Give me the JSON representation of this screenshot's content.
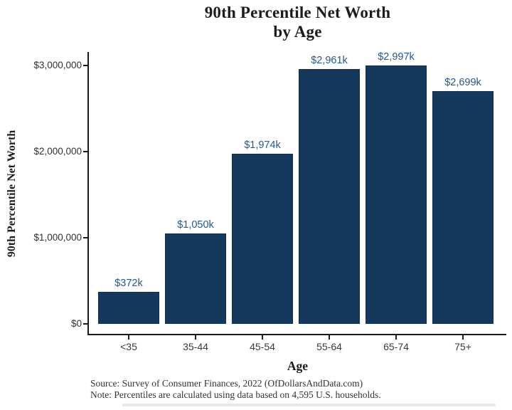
{
  "title": {
    "line1": "90th Percentile Net Worth",
    "line2": "by Age"
  },
  "chart_data": {
    "type": "bar",
    "title": "90th Percentile Net Worth by Age",
    "xlabel": "Age",
    "ylabel": "90th Percentile Net Worth",
    "categories": [
      "<35",
      "35-44",
      "45-54",
      "55-64",
      "65-74",
      "75+"
    ],
    "values": [
      372000,
      1050000,
      1974000,
      2961000,
      2997000,
      2699000
    ],
    "bar_labels": [
      "$372k",
      "$1,050k",
      "$1,974k",
      "$2,961k",
      "$2,997k",
      "$2,699k"
    ],
    "ylim": [
      0,
      3000000
    ],
    "y_ticks": [
      {
        "value": 0,
        "label": "$0"
      },
      {
        "value": 1000000,
        "label": "$1,000,000"
      },
      {
        "value": 2000000,
        "label": "$2,000,000"
      },
      {
        "value": 3000000,
        "label": "$3,000,000"
      }
    ],
    "grid": false,
    "legend": "none",
    "bar_color": "#14395c",
    "bar_label_color": "#1f5a8f"
  },
  "footer": {
    "source": "Source:  Survey of Consumer Finances, 2022 (OfDollarsAndData.com)",
    "note": "Note: Percentiles are calculated using data based on 4,595 U.S. households."
  },
  "colors": {
    "background": "#ffffff",
    "axis": "#1a1a1a",
    "tick_label": "#303030",
    "title_text": "#1c1c1c"
  }
}
